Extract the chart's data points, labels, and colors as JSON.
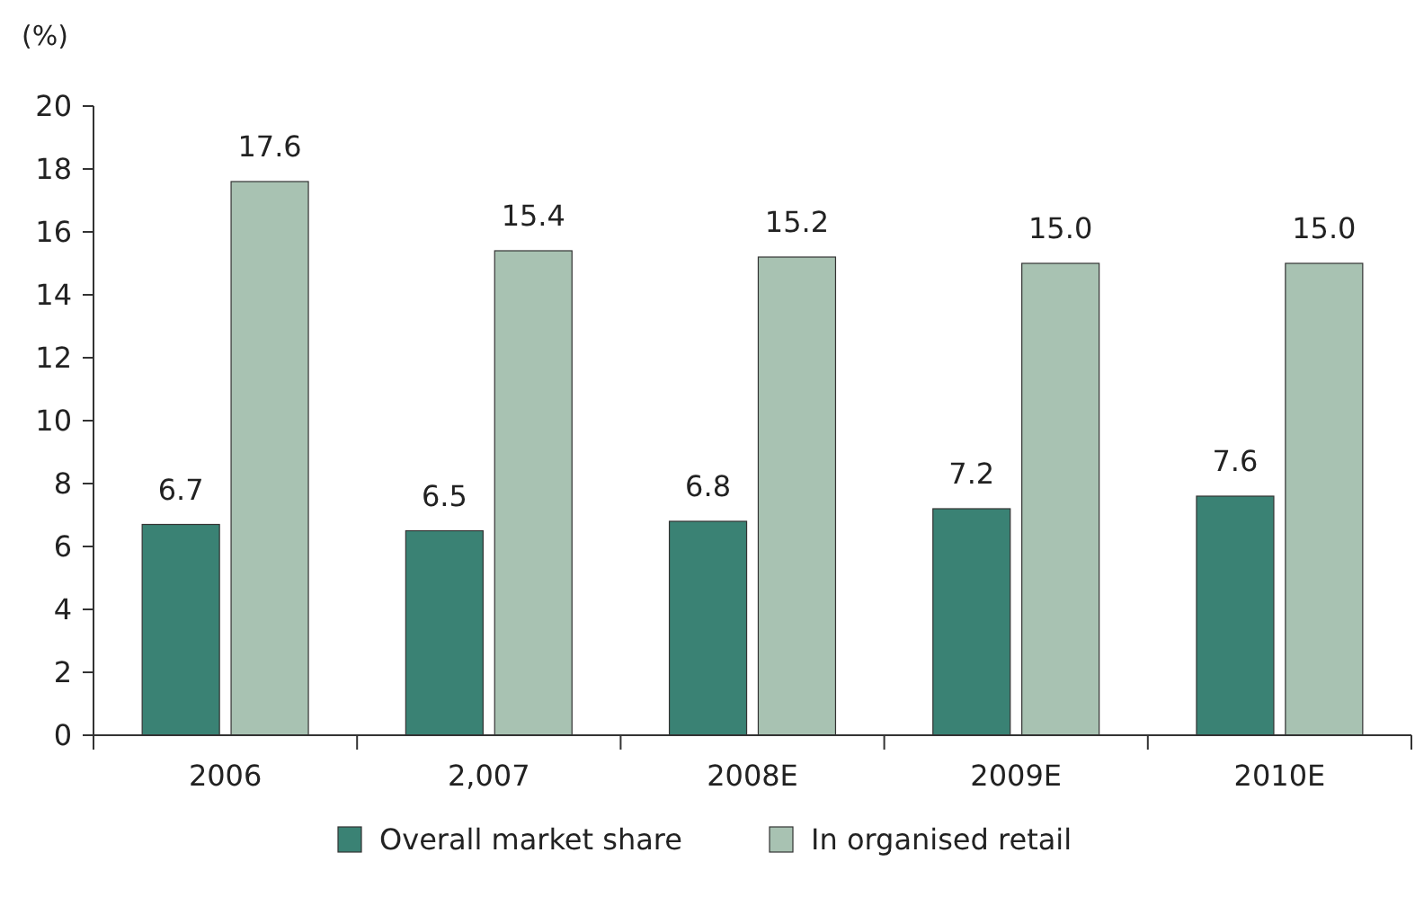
{
  "chart_data": {
    "type": "bar",
    "ylabel": "(%)",
    "categories": [
      "2006",
      "2,007",
      "2008E",
      "2009E",
      "2010E"
    ],
    "series": [
      {
        "name": "Overall market share",
        "color": "#3a8274",
        "values": [
          6.7,
          6.5,
          6.8,
          7.2,
          7.6
        ],
        "value_labels": [
          "6.7",
          "6.5",
          "6.8",
          "7.2",
          "7.6"
        ]
      },
      {
        "name": "In organised retail",
        "color": "#a8c2b2",
        "values": [
          17.6,
          15.4,
          15.2,
          15,
          15
        ],
        "value_labels": [
          "17.6",
          "15.4",
          "15.2",
          "15.0",
          "15.0"
        ]
      }
    ],
    "ylim": [
      0,
      20
    ],
    "yticks": [
      0,
      2,
      4,
      6,
      8,
      10,
      12,
      14,
      16,
      18,
      20
    ],
    "legend": "bottom",
    "grid": false
  }
}
